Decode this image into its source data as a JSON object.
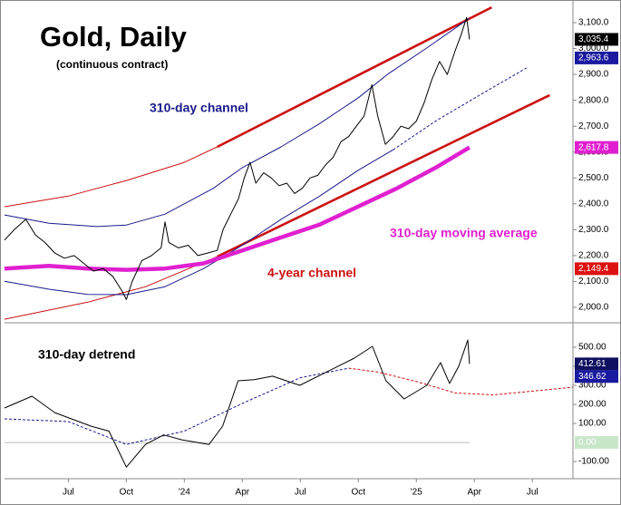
{
  "chart_data": [
    {
      "type": "line",
      "title": "Gold, Daily",
      "subtitle": "(continuous contract)",
      "xlim": [
        2.7,
        32.1
      ],
      "ylim": [
        1944,
        3170
      ],
      "yticks": [
        {
          "value": 2000,
          "label": "2,000.0"
        },
        {
          "value": 2100,
          "label": "2,100.0"
        },
        {
          "value": 2200,
          "label": "2,200.0"
        },
        {
          "value": 2300,
          "label": "2,300.0"
        },
        {
          "value": 2400,
          "label": "2,400.0"
        },
        {
          "value": 2500,
          "label": "2,500.0"
        },
        {
          "value": 2600,
          "label": "2,600.0"
        },
        {
          "value": 2700,
          "label": "2,700.0"
        },
        {
          "value": 2800,
          "label": "2,800.0"
        },
        {
          "value": 2900,
          "label": "2,900.0"
        },
        {
          "value": 3000,
          "label": "3,000.0"
        },
        {
          "value": 3100,
          "label": "3,100.0"
        }
      ],
      "series": [
        {
          "name": "4-year channel",
          "color": "#cc1111",
          "style": "thin",
          "x": [
            2.7,
            6,
            9,
            12,
            13.7
          ],
          "values": [
            2389,
            2430,
            2490,
            2560,
            2620
          ]
        },
        {
          "color": "#cc1111",
          "style": "thick",
          "x": [
            13.7,
            27.9
          ],
          "values": [
            2620,
            3159
          ]
        },
        {
          "color": "#cc1111",
          "style": "thin",
          "x": [
            2.7,
            7,
            10,
            13.7
          ],
          "values": [
            1954,
            2020,
            2080,
            2196
          ]
        },
        {
          "color": "#cc1111",
          "style": "thick",
          "x": [
            13.7,
            30.9
          ],
          "values": [
            2196,
            2820
          ]
        },
        {
          "name": "310-day channel",
          "color": "#1a1a8c",
          "style": "thin",
          "x": [
            2.7,
            5,
            7.5,
            9,
            11,
            13.5,
            15,
            17,
            19,
            21,
            22.5,
            24.5,
            26.75
          ],
          "values": [
            2357,
            2325,
            2312,
            2318,
            2360,
            2460,
            2540,
            2620,
            2710,
            2810,
            2900,
            3000,
            3117
          ]
        },
        {
          "color": "#1a1a8c",
          "style": "thin",
          "x": [
            2.7,
            5,
            7,
            9,
            11,
            13,
            15,
            17,
            19,
            21,
            22.8
          ],
          "values": [
            2101,
            2070,
            2050,
            2049,
            2080,
            2150,
            2240,
            2340,
            2430,
            2530,
            2609
          ]
        },
        {
          "color": "#1a1a8c",
          "style": "dashed",
          "x": [
            22.8,
            25,
            27.5,
            29.7
          ],
          "values": [
            2609,
            2720,
            2830,
            2925
          ]
        },
        {
          "name": "310-day moving average",
          "color": "#e020d0",
          "style": "heavy",
          "x": [
            2.7,
            5,
            7,
            9,
            11,
            13,
            15,
            17,
            19,
            21,
            23,
            25,
            26.75
          ],
          "values": [
            2150,
            2160,
            2150,
            2145,
            2150,
            2170,
            2220,
            2270,
            2320,
            2390,
            2460,
            2540,
            2618
          ]
        },
        {
          "color": "#000000",
          "style": "price",
          "x": [
            2.7,
            3.2,
            3.8,
            4.3,
            4.8,
            5.3,
            5.8,
            6.3,
            6.8,
            7.3,
            7.8,
            8.3,
            8.8,
            9.0,
            9.3,
            9.8,
            10.3,
            10.8,
            11.0,
            11.2,
            11.7,
            12.2,
            12.7,
            13.2,
            13.7,
            14.0,
            14.4,
            14.8,
            15.1,
            15.4,
            15.7,
            16.1,
            16.5,
            16.9,
            17.3,
            17.7,
            18.1,
            18.5,
            18.9,
            19.3,
            19.7,
            20.1,
            20.5,
            20.9,
            21.3,
            21.7,
            22.0,
            22.4,
            22.8,
            23.2,
            23.6,
            24.0,
            24.4,
            24.8,
            25.2,
            25.6,
            26.0,
            26.3,
            26.6,
            26.75
          ],
          "values": [
            2260,
            2300,
            2340,
            2280,
            2250,
            2210,
            2190,
            2200,
            2170,
            2140,
            2150,
            2120,
            2060,
            2030,
            2100,
            2180,
            2200,
            2230,
            2330,
            2250,
            2230,
            2240,
            2200,
            2210,
            2220,
            2300,
            2360,
            2420,
            2500,
            2560,
            2480,
            2520,
            2500,
            2470,
            2480,
            2440,
            2460,
            2500,
            2510,
            2550,
            2580,
            2640,
            2660,
            2700,
            2740,
            2860,
            2740,
            2630,
            2660,
            2700,
            2690,
            2720,
            2790,
            2880,
            2950,
            2900,
            2990,
            3050,
            3120,
            3035
          ]
        }
      ],
      "last_values": [
        {
          "value": 3035.4,
          "label": "3,035.4",
          "color": "#000000"
        },
        {
          "value": 2963.6,
          "label": "2,963.6",
          "color": "#1a1aa0"
        },
        {
          "value": 2617.8,
          "label": "2,617.8",
          "color": "#e020d0"
        },
        {
          "value": 2149.4,
          "label": "2,149.4",
          "color": "#dd1111"
        }
      ]
    },
    {
      "type": "line",
      "title": "310-day detrend",
      "xlim": [
        2.7,
        32.1
      ],
      "ylim": [
        -190,
        619
      ],
      "xticks": [
        {
          "value": 6,
          "label": "Jul"
        },
        {
          "value": 9,
          "label": "Oct"
        },
        {
          "value": 12,
          "label": "'24"
        },
        {
          "value": 15,
          "label": "Apr"
        },
        {
          "value": 18,
          "label": "Jul"
        },
        {
          "value": 21,
          "label": "Oct"
        },
        {
          "value": 24,
          "label": "'25"
        },
        {
          "value": 27,
          "label": "Apr"
        },
        {
          "value": 30,
          "label": "Jul"
        }
      ],
      "yticks": [
        {
          "value": -100,
          "label": "-100.00"
        },
        {
          "value": 100,
          "label": "100.00"
        },
        {
          "value": 200,
          "label": "200.00"
        },
        {
          "value": 300,
          "label": "300.00"
        },
        {
          "value": 400,
          "label": "400.00"
        },
        {
          "value": 500,
          "label": "500.00"
        }
      ],
      "series": [
        {
          "color": "#bbbbbb",
          "style": "thin",
          "x": [
            2.7,
            26.75
          ],
          "values": [
            0,
            0
          ]
        },
        {
          "color": "#1a1a8c",
          "style": "dashed",
          "x": [
            2.7,
            6,
            9,
            12,
            15,
            18,
            20.5
          ],
          "values": [
            124,
            110,
            -10,
            60,
            205,
            340,
            390
          ]
        },
        {
          "color": "#cc1111",
          "style": "dashed",
          "x": [
            20.5,
            22,
            24,
            26,
            28,
            32.1
          ],
          "values": [
            390,
            370,
            320,
            260,
            250,
            290
          ]
        },
        {
          "color": "#000000",
          "style": "price",
          "x": [
            2.7,
            4.12,
            5.3,
            7.17,
            8.1,
            9,
            9.99,
            10.93,
            11.87,
            13.28,
            13.98,
            14.78,
            15.62,
            16.56,
            17.97,
            19.38,
            20.79,
            21.73,
            22.43,
            23.37,
            24.54,
            25.25,
            25.72,
            26.19,
            26.66,
            26.75
          ],
          "values": [
            181,
            243,
            157,
            86,
            60,
            -129,
            -10,
            40,
            14,
            -10,
            86,
            324,
            330,
            348,
            300,
            371,
            443,
            505,
            324,
            229,
            300,
            419,
            310,
            400,
            538,
            412.61
          ]
        }
      ],
      "last_values": [
        {
          "value": 412.61,
          "label": "412.61",
          "color": "#101060"
        },
        {
          "value": 346.62,
          "label": "346.62",
          "color": "#1a1aa0"
        },
        {
          "value": 0,
          "label": "0.00",
          "color": "#c8e6c8"
        }
      ]
    }
  ]
}
